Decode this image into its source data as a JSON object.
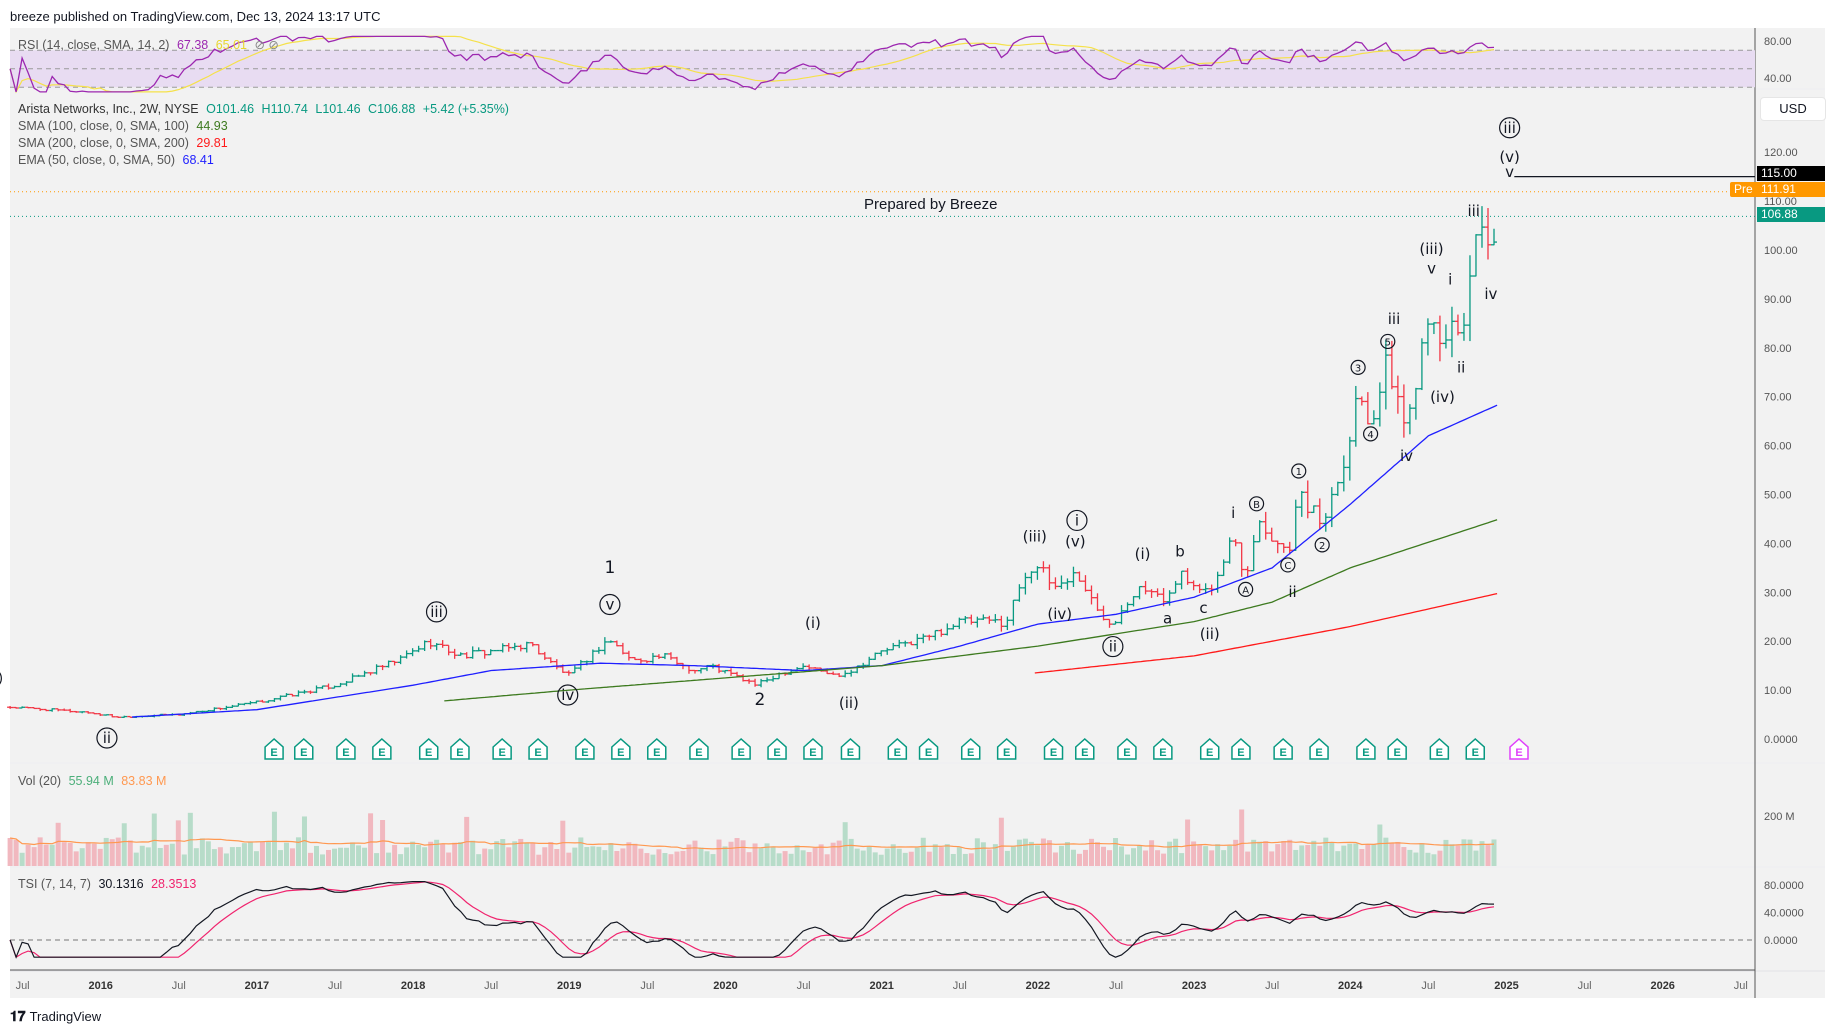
{
  "header": {
    "published": "breeze published on TradingView.com, Dec 13, 2024 13:17 UTC"
  },
  "legend": {
    "rsi": {
      "label": "RSI (14, close, SMA, 14, 2)",
      "value": "67.38",
      "signal": "65.01",
      "value_color": "#9c27b0",
      "signal_color": "#f5e14a"
    },
    "symbol": {
      "name": "Arista Networks, Inc., 2W, NYSE",
      "open": "O101.46",
      "high": "H110.74",
      "low": "L101.46",
      "close": "C106.88",
      "change": "+5.42 (+5.35%)"
    },
    "sma100": {
      "label": "SMA (100, close, 0, SMA, 100)",
      "value": "44.93",
      "color": "#3d7a1f"
    },
    "sma200": {
      "label": "SMA (200, close, 0, SMA, 200)",
      "value": "29.81",
      "color": "#ff1a1a"
    },
    "ema50": {
      "label": "EMA (50, close, 0, SMA, 50)",
      "value": "68.41",
      "color": "#1f1fff"
    },
    "vol": {
      "label": "Vol (20)",
      "value": "55.94 M",
      "ma": "83.83 M"
    },
    "tsi": {
      "label": "TSI (7, 14, 7)",
      "value": "30.1316",
      "signal": "28.3513"
    }
  },
  "currency": "USD",
  "annotation": "Prepared by Breeze",
  "price_tags": {
    "target": "115.00",
    "pre_label": "Pre",
    "pre": "111.91",
    "last": "106.88"
  },
  "logo": "TradingView",
  "colors": {
    "up": "#089981",
    "down": "#f23645",
    "pane_bg": "#f2f2f2"
  },
  "chart_data": {
    "type": "ohlc-bar",
    "symbol": "ANET",
    "interval": "2W",
    "price_axis": {
      "ticks": [
        "120.00",
        "110.00",
        "100.00",
        "90.00",
        "80.00",
        "70.00",
        "60.00",
        "50.00",
        "40.00",
        "30.00",
        "20.00",
        "10.00",
        "0.0000"
      ],
      "range": [
        0,
        125
      ]
    },
    "rsi_axis": {
      "ticks": [
        "80.00",
        "40.00"
      ],
      "bands": [
        70,
        50,
        30
      ]
    },
    "vol_axis": {
      "ticks": [
        "200 M"
      ]
    },
    "tsi_axis": {
      "ticks": [
        "80.0000",
        "40.0000",
        "0.0000"
      ]
    },
    "time_axis": [
      {
        "t": 2015.5,
        "label": "Jul"
      },
      {
        "t": 2016,
        "label": "2016",
        "bold": true
      },
      {
        "t": 2016.5,
        "label": "Jul"
      },
      {
        "t": 2017,
        "label": "2017",
        "bold": true
      },
      {
        "t": 2017.5,
        "label": "Jul"
      },
      {
        "t": 2018,
        "label": "2018",
        "bold": true
      },
      {
        "t": 2018.5,
        "label": "Jul"
      },
      {
        "t": 2019,
        "label": "2019",
        "bold": true
      },
      {
        "t": 2019.5,
        "label": "Jul"
      },
      {
        "t": 2020,
        "label": "2020",
        "bold": true
      },
      {
        "t": 2020.5,
        "label": "Jul"
      },
      {
        "t": 2021,
        "label": "2021",
        "bold": true
      },
      {
        "t": 2021.5,
        "label": "Jul"
      },
      {
        "t": 2022,
        "label": "2022",
        "bold": true
      },
      {
        "t": 2022.5,
        "label": "Jul"
      },
      {
        "t": 2023,
        "label": "2023",
        "bold": true
      },
      {
        "t": 2023.5,
        "label": "Jul"
      },
      {
        "t": 2024,
        "label": "2024",
        "bold": true
      },
      {
        "t": 2024.5,
        "label": "Jul"
      },
      {
        "t": 2025,
        "label": "2025",
        "bold": true
      },
      {
        "t": 2025.5,
        "label": "Jul"
      },
      {
        "t": 2026,
        "label": "2026",
        "bold": true
      },
      {
        "t": 2026.5,
        "label": "Jul"
      }
    ],
    "close_path": [
      [
        2015.42,
        6.5
      ],
      [
        2015.9,
        5.5
      ],
      [
        2016.1,
        4.5
      ],
      [
        2016.5,
        5
      ],
      [
        2017.0,
        7.5
      ],
      [
        2017.5,
        11
      ],
      [
        2017.9,
        16
      ],
      [
        2018.1,
        20
      ],
      [
        2018.3,
        17
      ],
      [
        2018.6,
        18.5
      ],
      [
        2018.75,
        19.5
      ],
      [
        2018.9,
        15
      ],
      [
        2019.0,
        13
      ],
      [
        2019.25,
        20.5
      ],
      [
        2019.4,
        16
      ],
      [
        2019.6,
        17
      ],
      [
        2019.8,
        14
      ],
      [
        2019.9,
        15
      ],
      [
        2020.2,
        11
      ],
      [
        2020.35,
        13.5
      ],
      [
        2020.5,
        15
      ],
      [
        2020.7,
        13
      ],
      [
        2020.8,
        14
      ],
      [
        2021.0,
        18
      ],
      [
        2021.3,
        21
      ],
      [
        2021.5,
        24
      ],
      [
        2021.8,
        24
      ],
      [
        2021.9,
        33
      ],
      [
        2021.98,
        36
      ],
      [
        2022.1,
        31
      ],
      [
        2022.25,
        34
      ],
      [
        2022.4,
        25
      ],
      [
        2022.48,
        24
      ],
      [
        2022.65,
        32
      ],
      [
        2022.8,
        28
      ],
      [
        2022.9,
        34
      ],
      [
        2023.05,
        29
      ],
      [
        2023.15,
        33
      ],
      [
        2023.25,
        42
      ],
      [
        2023.33,
        33
      ],
      [
        2023.4,
        45
      ],
      [
        2023.6,
        38
      ],
      [
        2023.67,
        50
      ],
      [
        2023.82,
        44
      ],
      [
        2024.0,
        62
      ],
      [
        2024.05,
        72
      ],
      [
        2024.13,
        65
      ],
      [
        2024.24,
        77
      ],
      [
        2024.36,
        63
      ],
      [
        2024.45,
        80
      ],
      [
        2024.52,
        92
      ],
      [
        2024.59,
        74
      ],
      [
        2024.64,
        88
      ],
      [
        2024.71,
        80
      ],
      [
        2024.79,
        104
      ],
      [
        2024.86,
        101
      ],
      [
        2024.9,
        95
      ],
      [
        2024.95,
        106.88
      ]
    ],
    "last_bar": {
      "open": 101.46,
      "high": 110.74,
      "low": 101.46,
      "close": 106.88
    },
    "ema50": [
      [
        2016.2,
        4.5
      ],
      [
        2017,
        6
      ],
      [
        2018,
        11
      ],
      [
        2018.5,
        14
      ],
      [
        2019.2,
        15.5
      ],
      [
        2019.8,
        15
      ],
      [
        2020.5,
        14
      ],
      [
        2021,
        15
      ],
      [
        2021.5,
        19
      ],
      [
        2022,
        23.5
      ],
      [
        2022.5,
        25.5
      ],
      [
        2023,
        29
      ],
      [
        2023.5,
        35
      ],
      [
        2024,
        48
      ],
      [
        2024.5,
        62
      ],
      [
        2024.95,
        68.41
      ]
    ],
    "sma100": [
      [
        2018.2,
        7.8
      ],
      [
        2019,
        10
      ],
      [
        2020,
        12.5
      ],
      [
        2021,
        15
      ],
      [
        2022,
        19
      ],
      [
        2023,
        24
      ],
      [
        2023.5,
        28
      ],
      [
        2024,
        35
      ],
      [
        2024.95,
        44.93
      ]
    ],
    "sma200": [
      [
        2021.98,
        13.5
      ],
      [
        2023,
        17
      ],
      [
        2024,
        23
      ],
      [
        2024.95,
        29.81
      ]
    ],
    "horizontal_levels": [
      {
        "price": 115,
        "from": 2025.05,
        "color": "#131722"
      },
      {
        "price": 111.91,
        "color": "#ff9800",
        "dotted": true
      },
      {
        "price": 106.88,
        "color": "#089981",
        "dotted": true
      }
    ],
    "earnings": [
      2017.11,
      2017.3,
      2017.57,
      2017.8,
      2018.1,
      2018.3,
      2018.57,
      2018.8,
      2019.1,
      2019.33,
      2019.56,
      2019.83,
      2020.1,
      2020.33,
      2020.56,
      2020.8,
      2021.1,
      2021.3,
      2021.57,
      2021.8,
      2022.1,
      2022.3,
      2022.57,
      2022.8,
      2023.1,
      2023.3,
      2023.57,
      2023.8,
      2024.1,
      2024.3,
      2024.57,
      2024.8
    ],
    "earnings_upcoming": 2025.08,
    "earnings_label": "E",
    "wave_labels": [
      {
        "t": 2015.3,
        "p": 12.4,
        "text": "i",
        "circled": true
      },
      {
        "t": 2016.04,
        "p": 0.2,
        "text": "ii",
        "circled": true
      },
      {
        "t": 2018.15,
        "p": 26,
        "text": "iii",
        "circled": true
      },
      {
        "t": 2018.99,
        "p": 9,
        "text": "iv",
        "circled": true
      },
      {
        "t": 2019.26,
        "p": 27.5,
        "text": "v",
        "circled": true
      },
      {
        "t": 2019.26,
        "p": 35,
        "text": "1",
        "big": true
      },
      {
        "t": 2020.22,
        "p": 8,
        "text": "2",
        "big": true
      },
      {
        "t": 2020.56,
        "p": 23.7,
        "text": "(i)"
      },
      {
        "t": 2020.79,
        "p": 7.4,
        "text": "(ii)"
      },
      {
        "t": 2021.98,
        "p": 41.4,
        "text": "(iii)"
      },
      {
        "t": 2022.24,
        "p": 40.4,
        "text": "(v)"
      },
      {
        "t": 2022.25,
        "p": 44.7,
        "text": "i",
        "circled": true
      },
      {
        "t": 2022.14,
        "p": 25.6,
        "text": "(iv)"
      },
      {
        "t": 2022.48,
        "p": 18.9,
        "text": "ii",
        "circled": true
      },
      {
        "t": 2022.67,
        "p": 37.8,
        "text": "(i)"
      },
      {
        "t": 2022.83,
        "p": 24.6,
        "text": "a"
      },
      {
        "t": 2022.91,
        "p": 38.3,
        "text": "b"
      },
      {
        "t": 2023.06,
        "p": 26.8,
        "text": "c"
      },
      {
        "t": 2023.1,
        "p": 21.5,
        "text": "(ii)"
      },
      {
        "t": 2023.25,
        "p": 46.2,
        "text": "i"
      },
      {
        "t": 2023.33,
        "p": 30.6,
        "text": "A",
        "circled": true,
        "small": true
      },
      {
        "t": 2023.4,
        "p": 48.1,
        "text": "B",
        "circled": true,
        "small": true
      },
      {
        "t": 2023.6,
        "p": 35.6,
        "text": "C",
        "circled": true,
        "small": true
      },
      {
        "t": 2023.63,
        "p": 30.1,
        "text": "ii"
      },
      {
        "t": 2023.67,
        "p": 54.8,
        "text": "1",
        "circled": true,
        "small": true
      },
      {
        "t": 2023.82,
        "p": 39.7,
        "text": "2",
        "circled": true,
        "small": true
      },
      {
        "t": 2024.05,
        "p": 76,
        "text": "3",
        "circled": true,
        "small": true
      },
      {
        "t": 2024.13,
        "p": 62.4,
        "text": "4",
        "circled": true,
        "small": true
      },
      {
        "t": 2024.24,
        "p": 81.3,
        "text": "5",
        "circled": true,
        "small": true
      },
      {
        "t": 2024.28,
        "p": 85.9,
        "text": "iii"
      },
      {
        "t": 2024.36,
        "p": 57.9,
        "text": "iv"
      },
      {
        "t": 2024.52,
        "p": 100.2,
        "text": "(iii)"
      },
      {
        "t": 2024.52,
        "p": 96.2,
        "text": "v"
      },
      {
        "t": 2024.64,
        "p": 94,
        "text": "i"
      },
      {
        "t": 2024.71,
        "p": 76,
        "text": "ii"
      },
      {
        "t": 2024.59,
        "p": 69.9,
        "text": "(iv)"
      },
      {
        "t": 2024.79,
        "p": 108,
        "text": "iii"
      },
      {
        "t": 2024.9,
        "p": 91,
        "text": "iv"
      },
      {
        "t": 2025.02,
        "p": 125,
        "text": "iii",
        "circled": true
      },
      {
        "t": 2025.02,
        "p": 119,
        "text": "(v)"
      },
      {
        "t": 2025.02,
        "p": 116,
        "text": "v"
      }
    ]
  }
}
